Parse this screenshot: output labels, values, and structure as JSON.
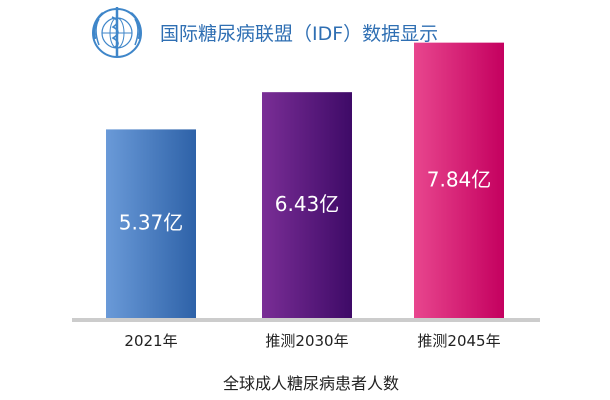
{
  "chart_data": {
    "type": "bar",
    "title": "国际糖尿病联盟（IDF）数据显示",
    "xlabel": "全球成人糖尿病患者人数",
    "ylabel": "",
    "categories": [
      "2021年",
      "推测2030年",
      "推测2045年"
    ],
    "values": [
      5.37,
      6.43,
      7.84
    ],
    "data_labels": [
      "5.37亿",
      "6.43亿",
      "7.84亿"
    ],
    "unit": "亿",
    "ylim": [
      0,
      8.2
    ],
    "grid": false,
    "legend": "none",
    "colors": [
      [
        "#6a9ad8",
        "#2e62a8"
      ],
      [
        "#7a2e96",
        "#3e0a67"
      ],
      [
        "#e8468e",
        "#c4005f"
      ]
    ],
    "baseline_color": "#cccccc",
    "logo_icon": "who-emblem-icon"
  }
}
